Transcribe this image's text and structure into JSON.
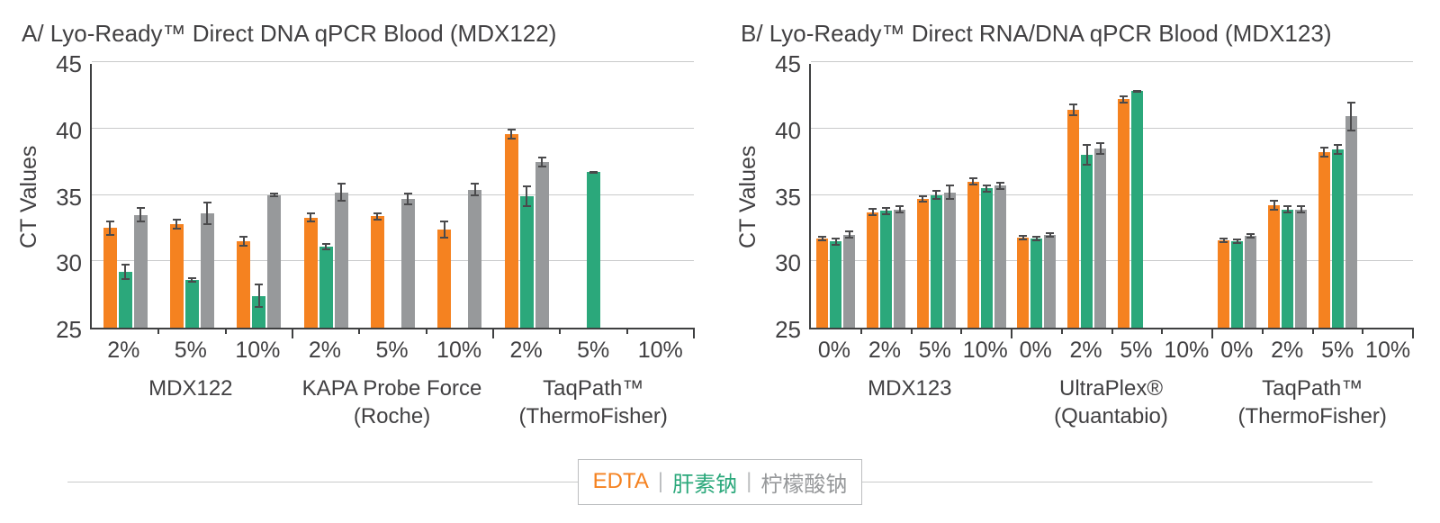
{
  "page": {
    "background": "#FFFFFF"
  },
  "legend": {
    "separator": "|",
    "items": [
      {
        "label": "EDTA",
        "color": "#F58220"
      },
      {
        "label": "肝素钠",
        "color": "#2BA87B"
      },
      {
        "label": "柠檬酸钠",
        "color": "#97999B"
      }
    ]
  },
  "chart_data": [
    {
      "type": "bar",
      "title": "A/ Lyo-Ready™ Direct DNA qPCR Blood (MDX122)",
      "ylabel": "CT Values",
      "ylim": [
        25,
        45
      ],
      "yticks": [
        25,
        30,
        35,
        40,
        45
      ],
      "grid": true,
      "legend_position": "bottom-shared",
      "groups": [
        {
          "label_lines": [
            "MDX122"
          ],
          "categories": [
            "2%",
            "5%",
            "10%"
          ]
        },
        {
          "label_lines": [
            "KAPA Probe Force",
            "(Roche)"
          ],
          "categories": [
            "2%",
            "5%",
            "10%"
          ]
        },
        {
          "label_lines": [
            "TaqPath™",
            "(ThermoFisher)"
          ],
          "categories": [
            "2%",
            "5%",
            "10%"
          ]
        }
      ],
      "series": [
        {
          "name": "EDTA",
          "color": "#F58220",
          "values": [
            32.5,
            32.8,
            31.5,
            33.3,
            33.4,
            32.4,
            39.6,
            null,
            null
          ],
          "errors": [
            0.6,
            0.4,
            0.4,
            0.4,
            0.3,
            0.7,
            0.4,
            null,
            null
          ]
        },
        {
          "name": "肝素钠",
          "color": "#2BA87B",
          "values": [
            29.2,
            28.6,
            27.4,
            31.1,
            null,
            null,
            34.9,
            36.7,
            null
          ],
          "errors": [
            0.6,
            0.2,
            0.9,
            0.3,
            null,
            null,
            0.8,
            0.1,
            null
          ]
        },
        {
          "name": "柠檬酸钠",
          "color": "#97999B",
          "values": [
            33.5,
            33.6,
            35.0,
            35.2,
            34.7,
            35.4,
            37.5,
            null,
            null
          ],
          "errors": [
            0.6,
            0.9,
            0.2,
            0.7,
            0.5,
            0.5,
            0.4,
            null,
            null
          ]
        }
      ]
    },
    {
      "type": "bar",
      "title": "B/ Lyo-Ready™ Direct RNA/DNA qPCR Blood (MDX123)",
      "ylabel": "CT Values",
      "ylim": [
        25,
        45
      ],
      "yticks": [
        25,
        30,
        35,
        40,
        45
      ],
      "grid": true,
      "legend_position": "bottom-shared",
      "groups": [
        {
          "label_lines": [
            "MDX123"
          ],
          "categories": [
            "0%",
            "2%",
            "5%",
            "10%"
          ]
        },
        {
          "label_lines": [
            "UltraPlex®",
            "(Quantabio)"
          ],
          "categories": [
            "0%",
            "2%",
            "5%",
            "10%"
          ]
        },
        {
          "label_lines": [
            "TaqPath™",
            "(ThermoFisher)"
          ],
          "categories": [
            "0%",
            "2%",
            "5%",
            "10%"
          ]
        }
      ],
      "series": [
        {
          "name": "EDTA",
          "color": "#F58220",
          "values": [
            31.7,
            33.7,
            34.7,
            36.0,
            31.8,
            41.4,
            42.2,
            null,
            31.6,
            34.2,
            38.2,
            null
          ],
          "errors": [
            0.2,
            0.3,
            0.3,
            0.3,
            0.2,
            0.5,
            0.3,
            null,
            0.2,
            0.4,
            0.4,
            null
          ]
        },
        {
          "name": "肝素钠",
          "color": "#2BA87B",
          "values": [
            31.5,
            33.8,
            35.0,
            35.5,
            31.7,
            38.0,
            42.8,
            null,
            31.5,
            33.9,
            38.4,
            null
          ],
          "errors": [
            0.3,
            0.3,
            0.4,
            0.3,
            0.2,
            0.8,
            0.1,
            null,
            0.2,
            0.3,
            0.4,
            null
          ]
        },
        {
          "name": "柠檬酸钠",
          "color": "#97999B",
          "values": [
            32.0,
            33.9,
            35.2,
            35.7,
            32.0,
            38.5,
            null,
            null,
            31.9,
            33.9,
            40.9,
            null
          ],
          "errors": [
            0.3,
            0.3,
            0.6,
            0.3,
            0.2,
            0.5,
            null,
            null,
            0.2,
            0.3,
            1.1,
            null
          ]
        }
      ]
    }
  ]
}
